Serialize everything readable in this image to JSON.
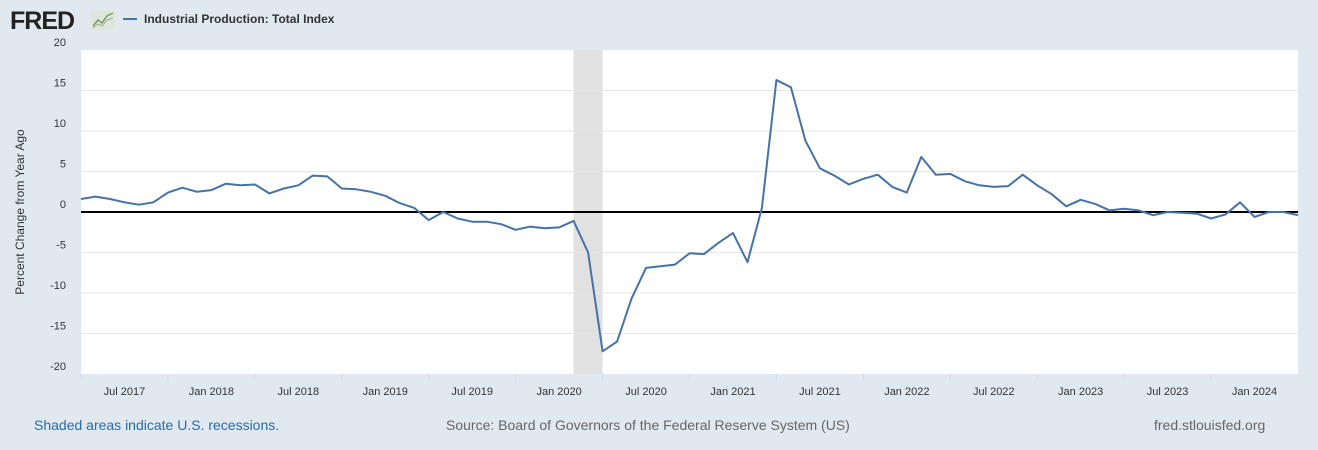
{
  "header": {
    "logo": "FRED",
    "legend_label": "Industrial Production: Total Index"
  },
  "chart_data": {
    "type": "line",
    "title": "Industrial Production: Total Index",
    "ylabel": "Percent Change from Year Ago",
    "xlabel": "",
    "ylim": [
      -20,
      20
    ],
    "yticks": [
      20,
      15,
      10,
      5,
      0,
      -5,
      -10,
      -15,
      -20
    ],
    "start": "2017-04",
    "frequency": "monthly",
    "xtick_labels": [
      {
        "label": "Jul 2017",
        "index": 3
      },
      {
        "label": "Jan 2018",
        "index": 9
      },
      {
        "label": "Jul 2018",
        "index": 15
      },
      {
        "label": "Jan 2019",
        "index": 21
      },
      {
        "label": "Jul 2019",
        "index": 27
      },
      {
        "label": "Jan 2020",
        "index": 33
      },
      {
        "label": "Jul 2020",
        "index": 39
      },
      {
        "label": "Jan 2021",
        "index": 45
      },
      {
        "label": "Jul 2021",
        "index": 51
      },
      {
        "label": "Jan 2022",
        "index": 57
      },
      {
        "label": "Jul 2022",
        "index": 63
      },
      {
        "label": "Jan 2023",
        "index": 69
      },
      {
        "label": "Jul 2023",
        "index": 75
      },
      {
        "label": "Jan 2024",
        "index": 81
      }
    ],
    "recession": {
      "start_index": 34,
      "end_index": 36
    },
    "series": [
      {
        "name": "Industrial Production: Total Index",
        "color": "#4572a7",
        "values": [
          1.6,
          1.9,
          1.6,
          1.2,
          0.9,
          1.2,
          2.4,
          3.0,
          2.5,
          2.7,
          3.5,
          3.3,
          3.4,
          2.3,
          2.9,
          3.3,
          4.5,
          4.4,
          2.9,
          2.8,
          2.5,
          2.0,
          1.1,
          0.5,
          -1.0,
          0.0,
          -0.8,
          -1.2,
          -1.2,
          -1.5,
          -2.2,
          -1.8,
          -2.0,
          -1.9,
          -1.1,
          -5.0,
          -17.2,
          -16.0,
          -10.7,
          -6.9,
          -6.7,
          -6.5,
          -5.1,
          -5.2,
          -3.8,
          -2.6,
          -6.2,
          0.5,
          16.3,
          15.4,
          8.8,
          5.4,
          4.5,
          3.4,
          4.1,
          4.6,
          3.1,
          2.4,
          6.8,
          4.6,
          4.7,
          3.8,
          3.3,
          3.1,
          3.2,
          4.6,
          3.3,
          2.2,
          0.7,
          1.5,
          1.0,
          0.2,
          0.4,
          0.2,
          -0.4,
          0.0,
          -0.1,
          -0.2,
          -0.8,
          -0.3,
          1.2,
          -0.6,
          0.0,
          0.0,
          -0.4
        ]
      }
    ]
  },
  "footer": {
    "recession_note": "Shaded areas indicate U.S. recessions.",
    "source": "Source: Board of Governors of the Federal Reserve System (US)",
    "site": "fred.stlouisfed.org"
  }
}
